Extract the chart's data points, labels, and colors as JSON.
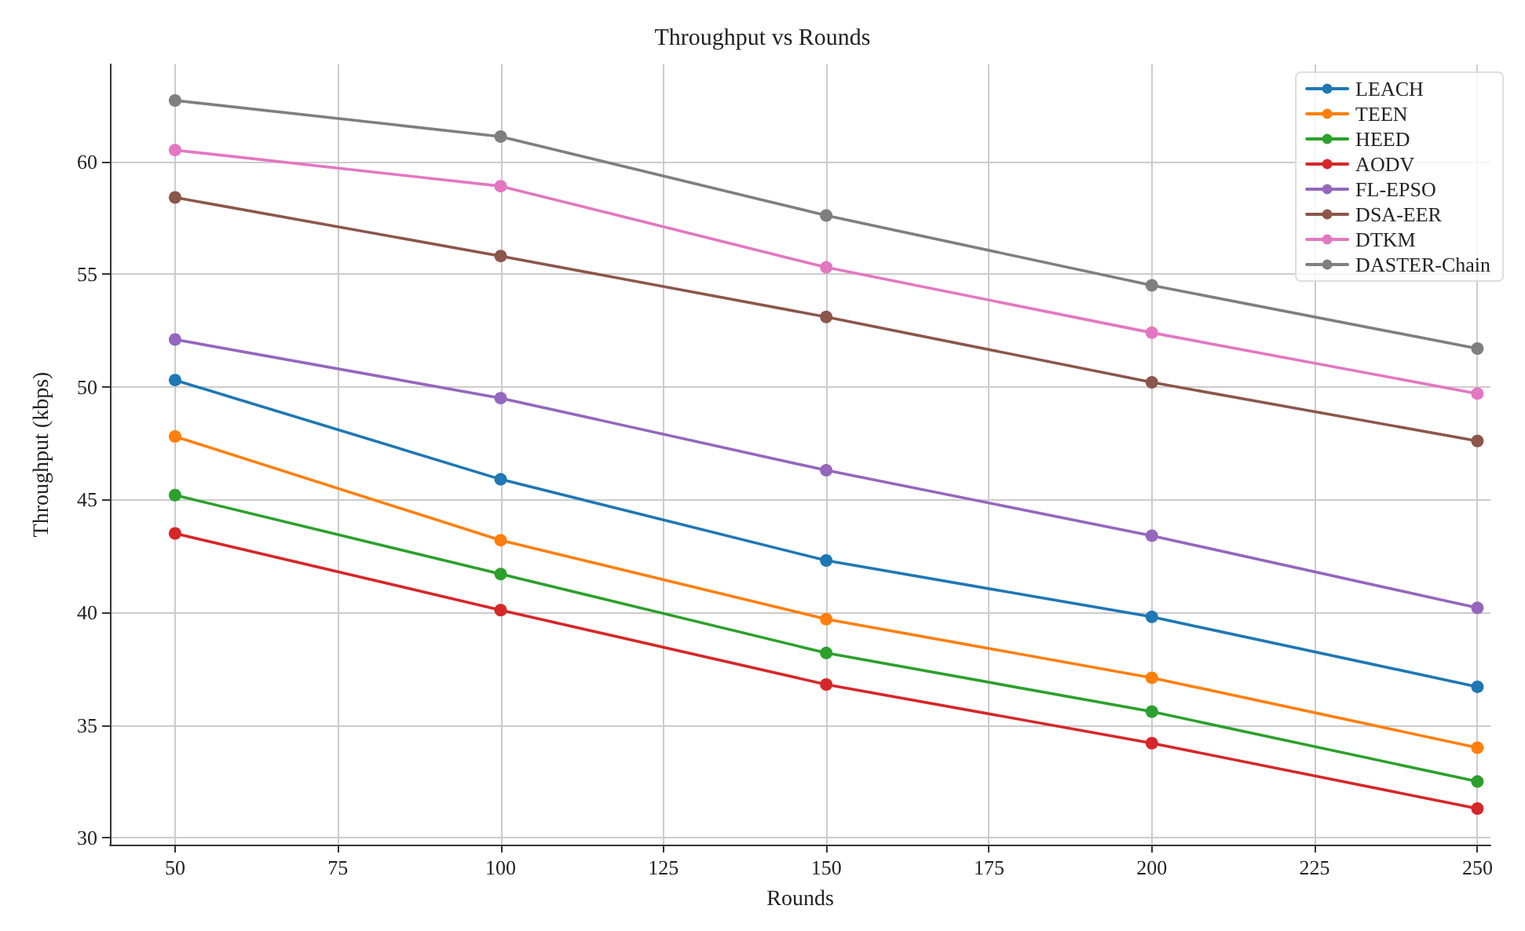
{
  "chart_data": {
    "type": "line",
    "title": "Throughput vs Rounds",
    "xlabel": "Rounds",
    "ylabel": "Throughput (kbps)",
    "x": [
      50,
      100,
      150,
      200,
      250
    ],
    "series": [
      {
        "name": "LEACH",
        "color": "#1f77b4",
        "values": [
          50.3,
          45.9,
          42.3,
          39.8,
          36.7
        ]
      },
      {
        "name": "TEEN",
        "color": "#ff7f0e",
        "values": [
          47.8,
          43.2,
          39.7,
          37.1,
          34.0
        ]
      },
      {
        "name": "HEED",
        "color": "#2ca02c",
        "values": [
          45.2,
          41.7,
          38.2,
          35.6,
          32.5
        ]
      },
      {
        "name": "AODV",
        "color": "#d62728",
        "values": [
          43.5,
          40.1,
          36.8,
          34.2,
          31.3
        ]
      },
      {
        "name": "FL-EPSO",
        "color": "#9467bd",
        "values": [
          52.1,
          49.5,
          46.3,
          43.4,
          40.2
        ]
      },
      {
        "name": "DSA-EER",
        "color": "#8c564b",
        "values": [
          58.4,
          55.8,
          53.1,
          50.2,
          47.6
        ]
      },
      {
        "name": "DTKM",
        "color": "#e377c2",
        "values": [
          60.5,
          58.9,
          55.3,
          52.4,
          49.7
        ]
      },
      {
        "name": "DASTER-Chain",
        "color": "#7f7f7f",
        "values": [
          62.7,
          61.1,
          57.6,
          54.5,
          51.7
        ]
      }
    ],
    "xlim": [
      40,
      252
    ],
    "xticks": [
      50,
      75,
      100,
      125,
      150,
      175,
      200,
      225,
      250
    ],
    "ylim": [
      29.7,
      64.3
    ],
    "yticks": [
      30,
      35,
      40,
      45,
      50,
      55,
      60
    ],
    "grid": true,
    "legend": "top right",
    "marker": "circle",
    "line_style": "solid"
  }
}
